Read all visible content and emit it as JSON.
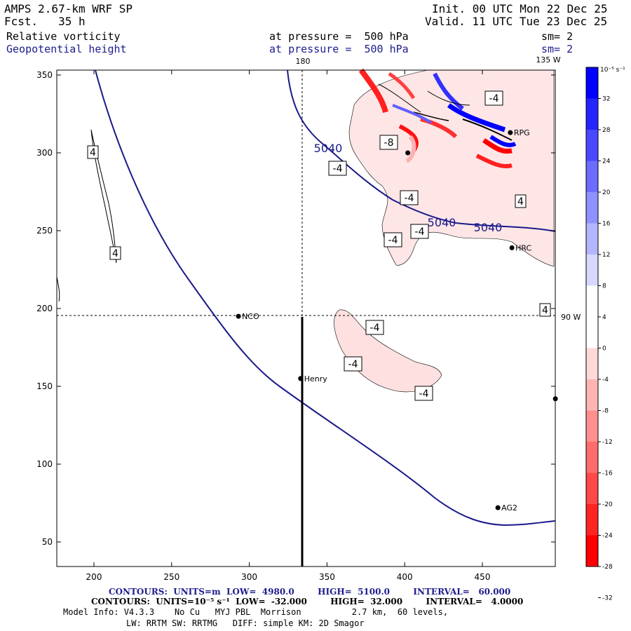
{
  "header": {
    "model_title": "AMPS 2.67-km WRF SP",
    "forecast": "Fcst.   35 h",
    "init": "Init. 00 UTC Mon 22 Dec 25",
    "valid": "Valid. 11 UTC Tue 23 Dec 25",
    "field1_name": "Relative vorticity",
    "field1_level": "at pressure =  500 hPa",
    "field1_smooth": "sm= 2",
    "field2_name": "Geopotential height",
    "field2_level": "at pressure =  500 hPa",
    "field2_smooth": "sm= 2"
  },
  "map": {
    "lon_labels": {
      "top_180": "180",
      "top_135w": "135 W",
      "right_90w": "90 W"
    },
    "x_ticks": [
      "200",
      "250",
      "300",
      "350",
      "400",
      "450"
    ],
    "y_ticks": [
      "350",
      "300",
      "250",
      "200",
      "150",
      "100",
      "50"
    ],
    "stations": [
      {
        "name": "NCO",
        "x": 293,
        "y": 195
      },
      {
        "name": "Henry",
        "x": 333,
        "y": 155
      },
      {
        "name": "AG2",
        "x": 460,
        "y": 72
      },
      {
        "name": "HRC",
        "x": 469,
        "y": 239
      },
      {
        "name": "RPG",
        "x": 468,
        "y": 313
      },
      {
        "name": "",
        "x": 402,
        "y": 300
      },
      {
        "name": "",
        "x": 497,
        "y": 142
      }
    ],
    "height_contour_labels": [
      "5040",
      "5040",
      "5040"
    ],
    "vorticity_labels": {
      "pos4_a": "4",
      "pos4_b": "4",
      "pos4_c": "4",
      "pos4_d": "4",
      "neg4": "-4",
      "neg8": "-8"
    }
  },
  "colorbar": {
    "units": "10⁻⁵ s⁻¹",
    "labels": [
      "32",
      "28",
      "24",
      "20",
      "16",
      "12",
      "8",
      "4",
      "0",
      "-4",
      "-8",
      "-12",
      "-16",
      "-20",
      "-24",
      "-28",
      "-32"
    ],
    "colors": [
      "#0000ff",
      "#2424ff",
      "#4848ff",
      "#6c6cff",
      "#9090ff",
      "#b4b4ff",
      "#d8d8ff",
      "#ffffff",
      "#ffffff",
      "#ffd8d8",
      "#ffb4b4",
      "#ff9090",
      "#ff6c6c",
      "#ff4848",
      "#ff2424",
      "#ff0000"
    ]
  },
  "footer": {
    "height_contours": "CONTOURS:  UNITS=m  LOW=  4980.0        HIGH=  5100.0        INTERVAL=   60.000",
    "vort_contours": "CONTOURS:  UNITS=10⁻⁵ s⁻¹  LOW=  -32.000        HIGH=  32.000        INTERVAL=   4.0000",
    "model_info": "Model Info: V4.3.3    No Cu   MYJ PBL  Morrison          2.7 km,  60 levels,",
    "model_info2": "LW: RRTM SW: RRTMG   DIFF: simple KM: 2D Smagor"
  }
}
